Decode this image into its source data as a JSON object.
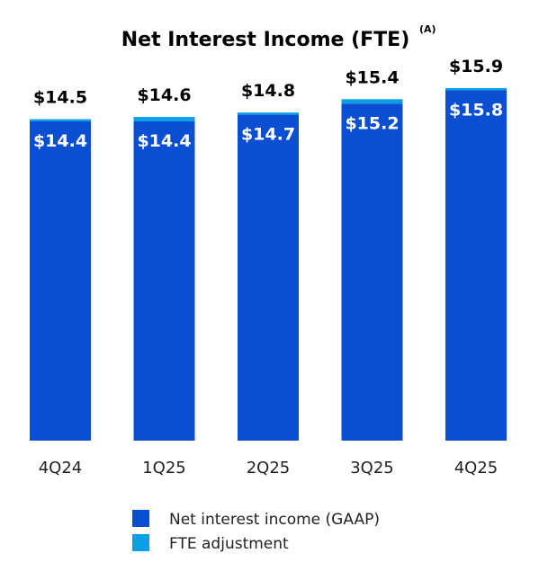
{
  "chart_data": {
    "type": "bar",
    "stacked": true,
    "title": "Net Interest Income (FTE)",
    "title_superscript": "(A)",
    "categories": [
      "4Q24",
      "1Q25",
      "2Q25",
      "3Q25",
      "4Q25"
    ],
    "series": [
      {
        "name": "Net interest income (GAAP)",
        "values": [
          14.4,
          14.4,
          14.7,
          15.2,
          15.8
        ],
        "labels": [
          "$14.4",
          "$14.4",
          "$14.7",
          "$15.2",
          "$15.8"
        ],
        "color": "#0a4fd1"
      },
      {
        "name": "FTE adjustment",
        "values": [
          0.1,
          0.2,
          0.1,
          0.2,
          0.1
        ],
        "color": "#0aa0e6"
      }
    ],
    "totals": [
      14.5,
      14.6,
      14.8,
      15.4,
      15.9
    ],
    "total_labels": [
      "$14.5",
      "$14.6",
      "$14.8",
      "$15.4",
      "$15.9"
    ],
    "ylim": [
      0,
      15.9
    ],
    "legend_position": "bottom",
    "grid": false
  }
}
